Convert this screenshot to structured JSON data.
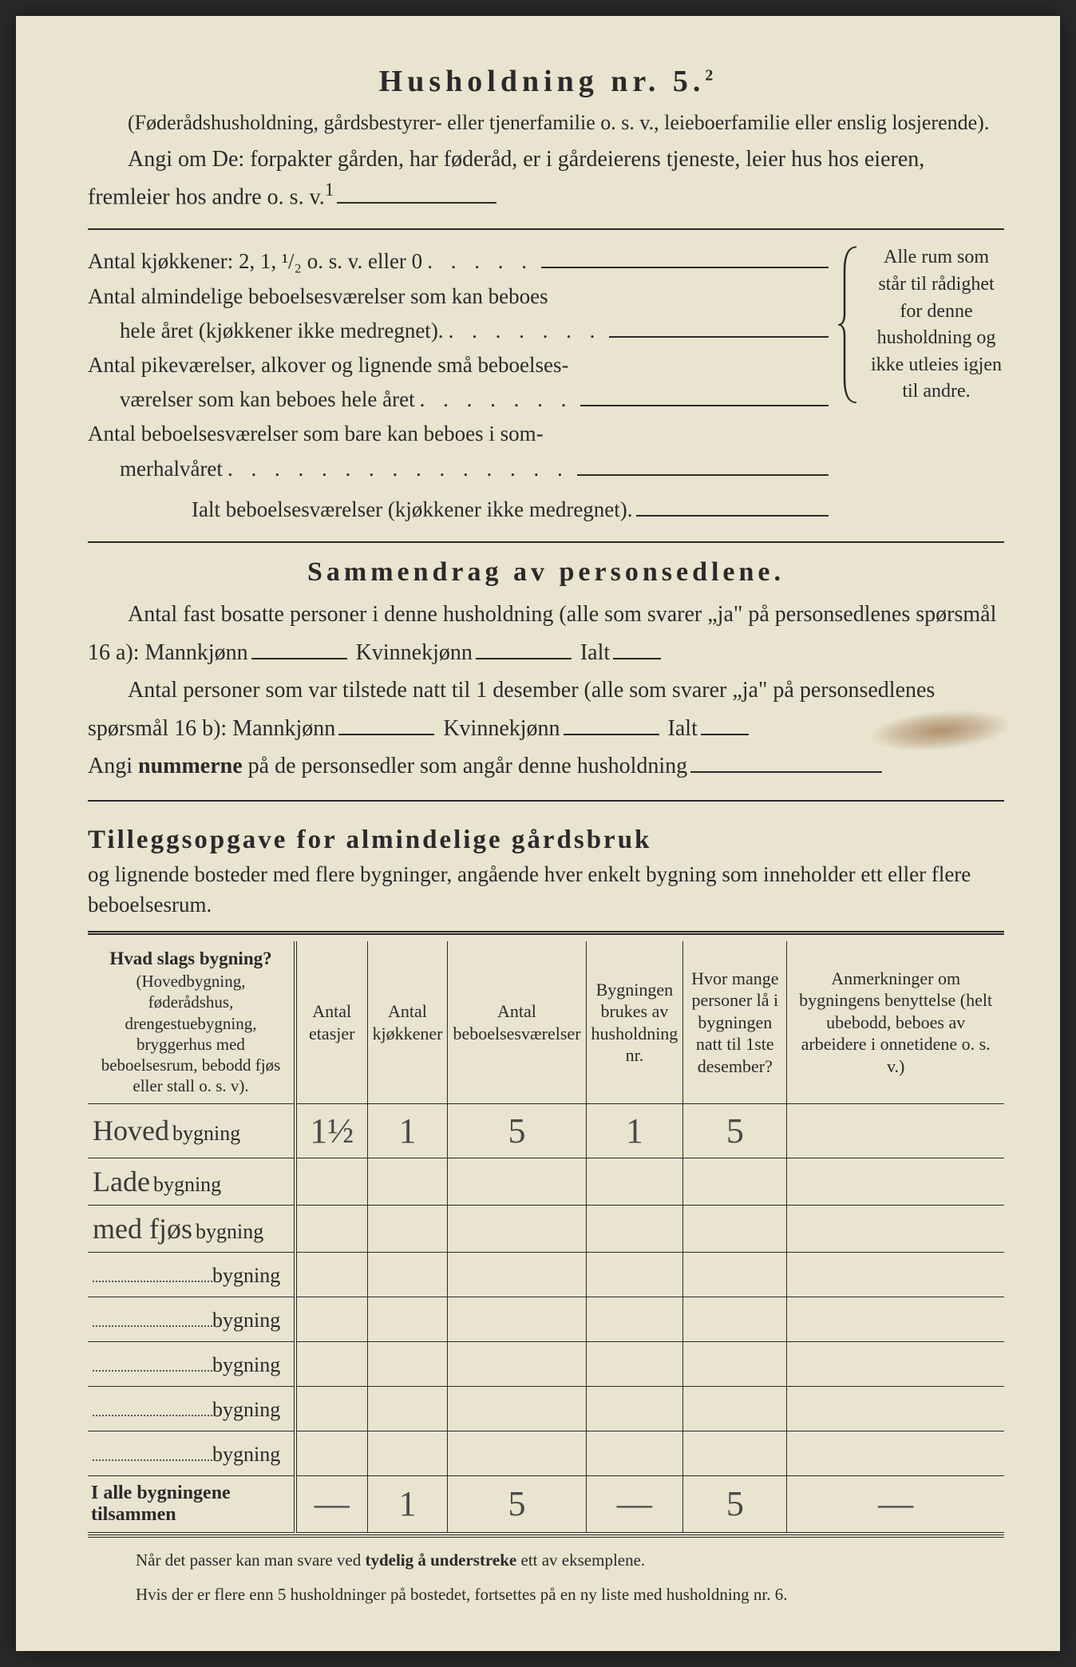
{
  "title": "Husholdning nr. 5.",
  "title_sup": "2",
  "subtitle": "(Føderådshusholdning, gårdsbestyrer- eller tjenerfamilie o. s. v., leieboerfamilie eller enslig losjerende).",
  "angi_line": "Angi om De:  forpakter gården, har føderåd, er i gårdeierens tjeneste, leier hus hos eieren, fremleier hos andre o. s. v.",
  "sup1": "1",
  "kitchens": {
    "l1": "Antal kjøkkener: 2, 1, ¹/₂ o. s. v. eller 0",
    "l2a": "Antal almindelige beboelsesværelser som kan beboes",
    "l2b": "hele året (kjøkkener ikke medregnet).",
    "l3a": "Antal pikeværelser, alkover og lignende små beboelses-",
    "l3b": "værelser som kan beboes hele året",
    "l4a": "Antal beboelsesværelser som bare kan beboes i som-",
    "l4b": "merhalvåret",
    "ialt": "Ialt beboelsesværelser  (kjøkkener ikke medregnet)."
  },
  "brace_text": "Alle rum som står til rådighet for denne husholdning og ikke utleies igjen til andre.",
  "section2_title": "Sammendrag av personsedlene.",
  "sam1": "Antal fast bosatte personer i denne husholdning (alle som svarer „ja\" på personsedlenes spørsmål 16 a): Mannkjønn",
  "sam_kv": "Kvinnekjønn",
  "sam_ialt": "Ialt",
  "sam2": "Antal personer som var tilstede natt til 1 desember (alle som svarer „ja\" på personsedlenes spørsmål 16 b): Mannkjønn",
  "sam3a": "Angi ",
  "sam3b": "nummerne",
  "sam3c": " på de personsedler som angår denne husholdning",
  "tillegg_title": "Tilleggsopgave for almindelige gårdsbruk",
  "tillegg_sub": "og lignende bosteder med flere bygninger, angående hver enkelt bygning som inneholder ett eller flere beboelsesrum.",
  "table": {
    "headers": {
      "c1_head": "Hvad slags bygning?",
      "c1_sub": "(Hovedbygning, føderådshus, drengestuebygning, bryggerhus med beboelsesrum, bebodd fjøs eller stall o. s. v).",
      "c2": "Antal etasjer",
      "c3": "Antal kjøkkener",
      "c4": "Antal beboelsesværelser",
      "c5": "Bygningen brukes av husholdning nr.",
      "c6": "Hvor mange personer lå i bygningen natt til 1ste desember?",
      "c7": "Anmerkninger om bygningens benyttelse (helt ubebodd, beboes av arbeidere i onnetidene o. s. v.)"
    },
    "rows": [
      {
        "hand": "Hoved",
        "suffix": "bygning",
        "c2": "1½",
        "c3": "1",
        "c4": "5",
        "c5": "1",
        "c6": "5",
        "c7": ""
      },
      {
        "hand": "Lade",
        "suffix": "bygning",
        "c2": "",
        "c3": "",
        "c4": "",
        "c5": "",
        "c6": "",
        "c7": ""
      },
      {
        "hand": "med fjøs",
        "suffix": "bygning",
        "c2": "",
        "c3": "",
        "c4": "",
        "c5": "",
        "c6": "",
        "c7": ""
      },
      {
        "hand": "",
        "suffix": "bygning",
        "c2": "",
        "c3": "",
        "c4": "",
        "c5": "",
        "c6": "",
        "c7": ""
      },
      {
        "hand": "",
        "suffix": "bygning",
        "c2": "",
        "c3": "",
        "c4": "",
        "c5": "",
        "c6": "",
        "c7": ""
      },
      {
        "hand": "",
        "suffix": "bygning",
        "c2": "",
        "c3": "",
        "c4": "",
        "c5": "",
        "c6": "",
        "c7": ""
      },
      {
        "hand": "",
        "suffix": "bygning",
        "c2": "",
        "c3": "",
        "c4": "",
        "c5": "",
        "c6": "",
        "c7": ""
      },
      {
        "hand": "",
        "suffix": "bygning",
        "c2": "",
        "c3": "",
        "c4": "",
        "c5": "",
        "c6": "",
        "c7": ""
      }
    ],
    "sum_label": "I alle bygningene tilsammen",
    "sum": {
      "c2": "—",
      "c3": "1",
      "c4": "5",
      "c5": "—",
      "c6": "5",
      "c7": "—"
    }
  },
  "footnote1": "Når det passer kan man svare ved tydelig å understreke ett av eksemplene.",
  "footnote2": "Hvis der er flere enn 5 husholdninger på bostedet, fortsettes på en ny liste med husholdning nr. 6.",
  "footnote_bold1": "tydelig å understreke"
}
